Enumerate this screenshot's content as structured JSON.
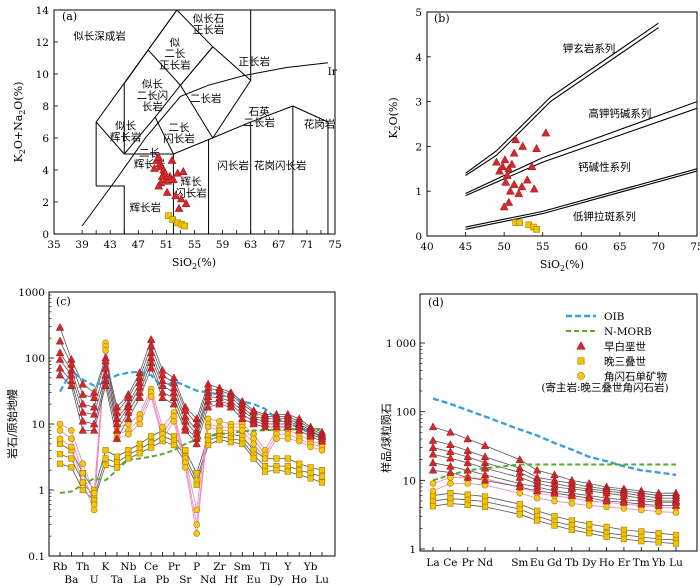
{
  "colors": {
    "oib": "#3aa0dc",
    "nmorb": "#5aaa2e",
    "triangle": "#d9262a",
    "square": "#f2c400",
    "square_edge": "#a07c00",
    "circle": "#f6c81a",
    "pink": "#ec8fc0",
    "grey": "#555555"
  },
  "chart_data": [
    {
      "id": "a",
      "type": "scatter",
      "panel_label": "(a)",
      "xlim": [
        35,
        75
      ],
      "ylim": [
        0,
        14
      ],
      "xticks": [
        35,
        39,
        41,
        43,
        45,
        47,
        49,
        51,
        53,
        55,
        57,
        59,
        61,
        63,
        65,
        67,
        69,
        71,
        73,
        75
      ],
      "xtick_labels": [
        "35",
        "39",
        "",
        "43",
        "",
        "47",
        "",
        "51",
        "",
        "55",
        "",
        "59",
        "",
        "63",
        "",
        "67",
        "",
        "71",
        "",
        "75"
      ],
      "yticks": [
        0,
        2,
        4,
        6,
        8,
        10,
        12,
        14
      ],
      "xlabel_main": "SiO",
      "xlabel_sub": "2",
      "xlabel_tail": "(%)",
      "ylabel_parts": [
        "K",
        "2",
        "O+Na",
        "2",
        "O(%)"
      ],
      "field_labels": [
        {
          "text": "似长深成岩",
          "x": 41.5,
          "y": 12.4
        },
        {
          "text": "似长石",
          "x": 57,
          "y": 13.5
        },
        {
          "text": "正长岩",
          "x": 57,
          "y": 12.8
        },
        {
          "text": "似",
          "x": 52.2,
          "y": 12.0
        },
        {
          "text": "二长",
          "x": 52.2,
          "y": 11.3
        },
        {
          "text": "正长岩",
          "x": 52.2,
          "y": 10.6
        },
        {
          "text": "正长岩",
          "x": 63.5,
          "y": 10.8
        },
        {
          "text": "似长",
          "x": 49.0,
          "y": 9.4
        },
        {
          "text": "二长闪",
          "x": 49.0,
          "y": 8.7
        },
        {
          "text": "长岩",
          "x": 49.0,
          "y": 8.0
        },
        {
          "text": "二长岩",
          "x": 56.6,
          "y": 8.5
        },
        {
          "text": "似长",
          "x": 45.2,
          "y": 6.8
        },
        {
          "text": "辉长岩",
          "x": 45.2,
          "y": 6.1
        },
        {
          "text": "二长",
          "x": 52.8,
          "y": 6.7
        },
        {
          "text": "闪长岩",
          "x": 52.8,
          "y": 6.0
        },
        {
          "text": "二长",
          "x": 48.6,
          "y": 5.1
        },
        {
          "text": "辉长岩",
          "x": 48.6,
          "y": 4.4
        },
        {
          "text": "石英",
          "x": 64.2,
          "y": 7.7
        },
        {
          "text": "二长岩",
          "x": 64.2,
          "y": 7.0
        },
        {
          "text": "花岗岩",
          "x": 72.8,
          "y": 6.9
        },
        {
          "text": "闪长岩",
          "x": 60.5,
          "y": 4.3
        },
        {
          "text": "花岗闪长岩",
          "x": 67.2,
          "y": 4.3
        },
        {
          "text": "辉长",
          "x": 54.5,
          "y": 3.3
        },
        {
          "text": "闪长岩",
          "x": 54.5,
          "y": 2.6
        },
        {
          "text": "辉长岩",
          "x": 48.0,
          "y": 1.7
        },
        {
          "text": "Ir",
          "x": 74.6,
          "y": 10.2
        }
      ],
      "triangles": [
        [
          49.3,
          4.1
        ],
        [
          49.6,
          4.6
        ],
        [
          49.9,
          4.8
        ],
        [
          50.1,
          4.4
        ],
        [
          50.3,
          4.2
        ],
        [
          50.6,
          4.0
        ],
        [
          50.8,
          3.8
        ],
        [
          50.4,
          3.6
        ],
        [
          50.9,
          3.4
        ],
        [
          51.2,
          3.3
        ],
        [
          50.2,
          3.2
        ],
        [
          49.9,
          3.0
        ],
        [
          51.5,
          3.6
        ],
        [
          52.0,
          3.4
        ],
        [
          52.6,
          3.8
        ],
        [
          53.4,
          3.9
        ],
        [
          51.1,
          2.6
        ],
        [
          52.3,
          2.4
        ],
        [
          53.1,
          2.2
        ],
        [
          53.8,
          1.9
        ],
        [
          52.8,
          1.6
        ],
        [
          51.8,
          4.6
        ]
      ],
      "squares": [
        [
          51.3,
          1.15
        ],
        [
          51.9,
          0.9
        ],
        [
          52.6,
          0.7
        ],
        [
          53.2,
          0.6
        ],
        [
          53.6,
          0.5
        ]
      ]
    },
    {
      "id": "b",
      "type": "scatter",
      "panel_label": "(b)",
      "xlim": [
        40,
        75
      ],
      "ylim": [
        0,
        5
      ],
      "xticks": [
        40,
        45,
        50,
        55,
        60,
        65,
        70,
        75
      ],
      "yticks": [
        0,
        1,
        2,
        3,
        4,
        5
      ],
      "xlabel_main": "SiO",
      "xlabel_sub": "2",
      "xlabel_tail": "(%)",
      "ylabel_parts": [
        "K",
        "2",
        "O(%)"
      ],
      "series_labels": [
        {
          "text": "钾玄岩系列",
          "x": 61,
          "y": 4.2
        },
        {
          "text": "高钾钙碱系列",
          "x": 65,
          "y": 2.75
        },
        {
          "text": "钙碱性系列",
          "x": 63,
          "y": 1.55
        },
        {
          "text": "低钾拉斑系列",
          "x": 63,
          "y": 0.45
        }
      ],
      "triangles": [
        [
          49.0,
          1.65
        ],
        [
          49.4,
          1.45
        ],
        [
          49.8,
          1.55
        ],
        [
          50.1,
          1.7
        ],
        [
          50.4,
          1.35
        ],
        [
          50.6,
          1.5
        ],
        [
          51.0,
          1.6
        ],
        [
          50.2,
          1.2
        ],
        [
          50.8,
          1.0
        ],
        [
          51.3,
          1.15
        ],
        [
          51.9,
          0.95
        ],
        [
          52.3,
          1.1
        ],
        [
          53.0,
          1.25
        ],
        [
          53.6,
          1.55
        ],
        [
          52.4,
          2.0
        ],
        [
          51.3,
          1.85
        ],
        [
          50.6,
          0.75
        ],
        [
          50.0,
          0.65
        ],
        [
          53.9,
          1.05
        ],
        [
          55.4,
          2.3
        ],
        [
          54.2,
          1.95
        ],
        [
          51.5,
          2.15
        ]
      ],
      "squares": [
        [
          51.5,
          0.3
        ],
        [
          52.0,
          0.3
        ],
        [
          53.2,
          0.25
        ],
        [
          53.8,
          0.2
        ],
        [
          54.2,
          0.15
        ]
      ]
    },
    {
      "id": "c",
      "type": "line",
      "panel_label": "(c)",
      "yscale": "log",
      "ylim": [
        0.1,
        1000
      ],
      "yticks": [
        0.1,
        1,
        10,
        100,
        1000
      ],
      "ytick_labels": [
        "0.1",
        "1",
        "10",
        "100",
        "1000"
      ],
      "ylabel": "岩石/原始地幔",
      "categories": [
        "Rb",
        "Ba",
        "Th",
        "U",
        "K",
        "Ta",
        "Nb",
        "La",
        "Ce",
        "Pb",
        "Pr",
        "Sr",
        "P",
        "Nd",
        "Zr",
        "Hf",
        "Sm",
        "Eu",
        "Ti",
        "Dy",
        "Y",
        "Ho",
        "Yb",
        "Lu"
      ],
      "oib": [
        31,
        63,
        47,
        38,
        44,
        55,
        60,
        62,
        55,
        35,
        45,
        38,
        32,
        30,
        28,
        25,
        22,
        20,
        17,
        12,
        10,
        9,
        7,
        6.5
      ],
      "nmorb": [
        0.9,
        0.95,
        1.2,
        1.5,
        1.4,
        2.0,
        2.9,
        3.0,
        3.2,
        3.5,
        4.0,
        5.0,
        5.8,
        6.5,
        7.0,
        7.3,
        7.7,
        8.0,
        8.0,
        8.2,
        8.3,
        8.3,
        8.4,
        8.4
      ],
      "early_cretaceous": [
        [
          290,
          95,
          40,
          30,
          100,
          18,
          28,
          60,
          190,
          65,
          50,
          18,
          12,
          40,
          35,
          30,
          22,
          16,
          14,
          14,
          14,
          12,
          9,
          7.5
        ],
        [
          180,
          80,
          28,
          25,
          90,
          15,
          25,
          50,
          150,
          55,
          42,
          16,
          10,
          35,
          32,
          28,
          20,
          15,
          13,
          13,
          13,
          11,
          8.5,
          7
        ],
        [
          120,
          65,
          20,
          18,
          70,
          12,
          20,
          42,
          120,
          45,
          35,
          13,
          8,
          30,
          28,
          25,
          18,
          13,
          12,
          12,
          12,
          10,
          8,
          6.5
        ],
        [
          95,
          55,
          15,
          14,
          55,
          10,
          18,
          36,
          100,
          38,
          30,
          11,
          7,
          26,
          25,
          22,
          16,
          12,
          11,
          11,
          11,
          9.5,
          7.5,
          6.5
        ],
        [
          70,
          45,
          11,
          10,
          45,
          8,
          15,
          30,
          85,
          30,
          25,
          9,
          6,
          22,
          22,
          20,
          14,
          11,
          10,
          10,
          10,
          9,
          7,
          6
        ],
        [
          55,
          38,
          8,
          8,
          38,
          6,
          12,
          25,
          70,
          25,
          20,
          8,
          5,
          18,
          20,
          18,
          12,
          10,
          9,
          9,
          9,
          8,
          6.5,
          5.5
        ]
      ],
      "late_triassic": [
        [
          5,
          4,
          1.8,
          1.0,
          4,
          3.2,
          4,
          5,
          6.5,
          8,
          6.5,
          4,
          1.8,
          6.5,
          7.5,
          7,
          6.5,
          4,
          3,
          3,
          3,
          2.5,
          2.2,
          2
        ],
        [
          3.5,
          3,
          1.3,
          0.8,
          3,
          2.6,
          3.4,
          4.2,
          5.2,
          6.5,
          5.6,
          3.2,
          1.4,
          5.6,
          6.5,
          6,
          5.6,
          3.4,
          2.3,
          2.3,
          2.3,
          2,
          1.8,
          1.6
        ],
        [
          2.5,
          2.2,
          1.0,
          0.7,
          2.4,
          2.2,
          3,
          3.6,
          4.4,
          5.5,
          4.8,
          2.7,
          1.2,
          4.8,
          5.8,
          5.3,
          5,
          3,
          1.9,
          2,
          1.9,
          1.7,
          1.5,
          1.3
        ]
      ],
      "amphibole": [
        [
          10,
          8,
          2.5,
          0.9,
          170,
          9,
          10,
          14,
          34,
          9,
          15,
          3,
          0.5,
          12,
          11,
          10,
          10,
          7,
          4,
          8,
          8,
          7,
          5.5,
          5
        ],
        [
          8,
          6,
          1.8,
          0.6,
          150,
          7,
          8,
          12,
          30,
          7,
          13,
          2.6,
          0.3,
          10,
          9,
          9,
          9,
          6,
          3.4,
          7,
          7,
          6,
          5,
          4.5
        ],
        [
          6,
          4.5,
          1.3,
          0.5,
          130,
          6,
          7,
          10,
          26,
          6,
          11,
          2.2,
          0.22,
          9,
          8,
          8,
          8,
          5,
          3,
          6,
          6,
          5.5,
          4.5,
          4
        ]
      ]
    },
    {
      "id": "d",
      "type": "line",
      "panel_label": "(d)",
      "yscale": "log",
      "ylim": [
        1,
        1000
      ],
      "yticks": [
        1,
        10,
        100,
        1000
      ],
      "ytick_labels": [
        "1",
        "10",
        "100",
        "1 000"
      ],
      "ylabel": "样品/球粒陨石",
      "categories": [
        "La",
        "Ce",
        "Pr",
        "Nd",
        "Sm",
        "Eu",
        "Gd",
        "Tb",
        "Dy",
        "Ho",
        "Er",
        "Tm",
        "Yb",
        "Lu"
      ],
      "category_positions": [
        0,
        1,
        2,
        3,
        5,
        6,
        7,
        8,
        9,
        10,
        11,
        12,
        13,
        14
      ],
      "oib": [
        155,
        130,
        105,
        85,
        55,
        45,
        35,
        28,
        22,
        19,
        16,
        14,
        13,
        12
      ],
      "nmorb": [
        10,
        12,
        14,
        15,
        17,
        17,
        17,
        17,
        17,
        17,
        17,
        17,
        17,
        17
      ],
      "early_cretaceous": [
        [
          60,
          50,
          40,
          32,
          20,
          14,
          12,
          10,
          9,
          8,
          7.5,
          7,
          6.5,
          6.5
        ],
        [
          38,
          33,
          27,
          22,
          15,
          11,
          10,
          9,
          8,
          7.5,
          7,
          6.5,
          6,
          6
        ],
        [
          30,
          26,
          22,
          18,
          13,
          10,
          9,
          8,
          7.5,
          7,
          6.5,
          6,
          5.5,
          5.5
        ],
        [
          24,
          21,
          18,
          15,
          11,
          9,
          8,
          7.5,
          7,
          6.5,
          6,
          5.5,
          5,
          5
        ],
        [
          18,
          16,
          14,
          12,
          9,
          8,
          7,
          6.5,
          6,
          5.5,
          5.2,
          5,
          4.8,
          4.8
        ],
        [
          14,
          13,
          11,
          10,
          8,
          7,
          6.5,
          6,
          5.5,
          5,
          4.8,
          4.5,
          4.3,
          4.3
        ]
      ],
      "late_triassic": [
        [
          6,
          6.5,
          6.2,
          5.8,
          4.5,
          3.6,
          3,
          2.6,
          2.3,
          2.1,
          1.9,
          1.8,
          1.7,
          1.6
        ],
        [
          5,
          5.4,
          5.2,
          4.9,
          3.8,
          3,
          2.5,
          2.2,
          1.9,
          1.7,
          1.6,
          1.5,
          1.4,
          1.35
        ],
        [
          4.2,
          4.6,
          4.4,
          4.1,
          3.2,
          2.6,
          2.2,
          1.9,
          1.7,
          1.5,
          1.4,
          1.3,
          1.25,
          1.2
        ]
      ],
      "amphibole": [
        [
          9,
          11,
          11,
          10.5,
          8,
          6.5,
          6,
          5.5,
          5,
          4.8,
          4.5,
          4.3,
          4.1,
          4
        ],
        [
          7,
          9,
          9,
          8.5,
          6.5,
          5.5,
          5,
          4.6,
          4.3,
          4.1,
          3.9,
          3.7,
          3.5,
          3.4
        ]
      ],
      "legend": [
        {
          "key": "oib",
          "label": "OIB"
        },
        {
          "key": "nmorb",
          "label": "N-MORB"
        },
        {
          "key": "triangle",
          "label": "早白垩世"
        },
        {
          "key": "square",
          "label": "晚三叠世"
        },
        {
          "key": "circle",
          "label": "角闪石单矿物"
        }
      ],
      "legend_note": "(寄主岩:晚三叠世角闪石岩)"
    }
  ]
}
